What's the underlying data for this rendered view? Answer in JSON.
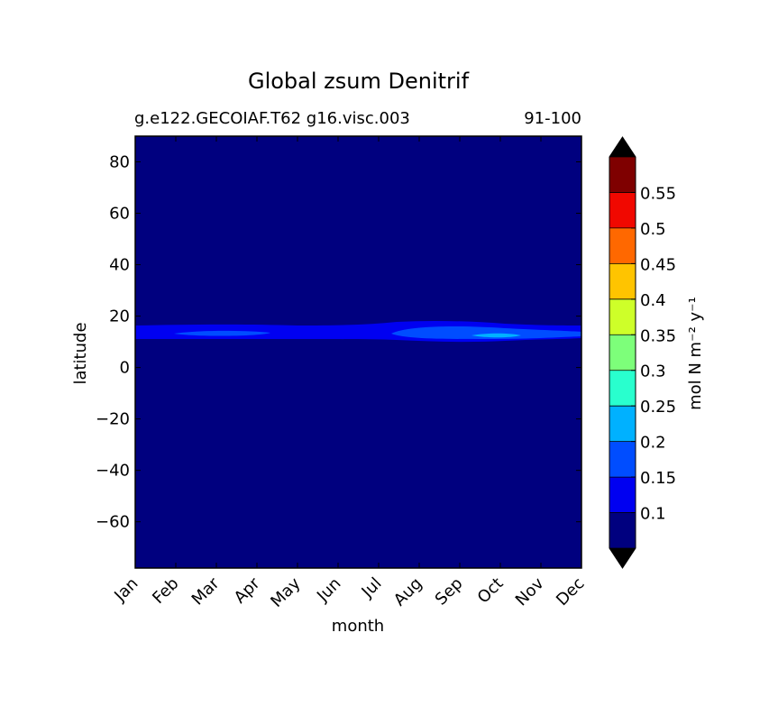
{
  "chart_data": {
    "type": "heatmap",
    "title": "Global zsum Denitrif",
    "subtitle_left": "g.e122.GECOIAF.T62 g16.visc.003",
    "subtitle_right": "91-100",
    "xlabel": "month",
    "ylabel": "latitude",
    "x_categories": [
      "Jan",
      "Feb",
      "Mar",
      "Apr",
      "May",
      "Jun",
      "Jul",
      "Aug",
      "Sep",
      "Oct",
      "Nov",
      "Dec"
    ],
    "yticks": [
      80,
      60,
      40,
      20,
      0,
      -20,
      -40,
      -60
    ],
    "ytick_labels": [
      "80",
      "60",
      "40",
      "20",
      "0",
      "−20",
      "−40",
      "−60"
    ],
    "ylim": [
      -78,
      90
    ],
    "colorbar": {
      "label": "mol N m⁻² y⁻¹",
      "levels": [
        0.05,
        0.1,
        0.15,
        0.2,
        0.25,
        0.3,
        0.35,
        0.4,
        0.45,
        0.5,
        0.55,
        0.6
      ],
      "tick_labels": [
        "0.1",
        "0.15",
        "0.2",
        "0.25",
        "0.3",
        "0.35",
        "0.4",
        "0.45",
        "0.5",
        "0.55"
      ],
      "colors": [
        "#00007f",
        "#0000f1",
        "#004dff",
        "#00b1ff",
        "#29ffce",
        "#7dff7a",
        "#ceff29",
        "#ffc400",
        "#ff6800",
        "#f10800",
        "#7f0000"
      ],
      "extend": "both",
      "under_color": "#000000",
      "over_color": "#000000"
    },
    "background_value": "below 0.1 everywhere except tropical band",
    "features": [
      {
        "region": "latitude 10 to 16, all months",
        "level": "0.1-0.15"
      },
      {
        "region": "latitude 11 to 14, Feb-Apr and Aug-Dec",
        "level": "0.15-0.2"
      },
      {
        "region": "latitude ~12, Sep-Oct",
        "level": "0.2-0.25"
      }
    ]
  }
}
